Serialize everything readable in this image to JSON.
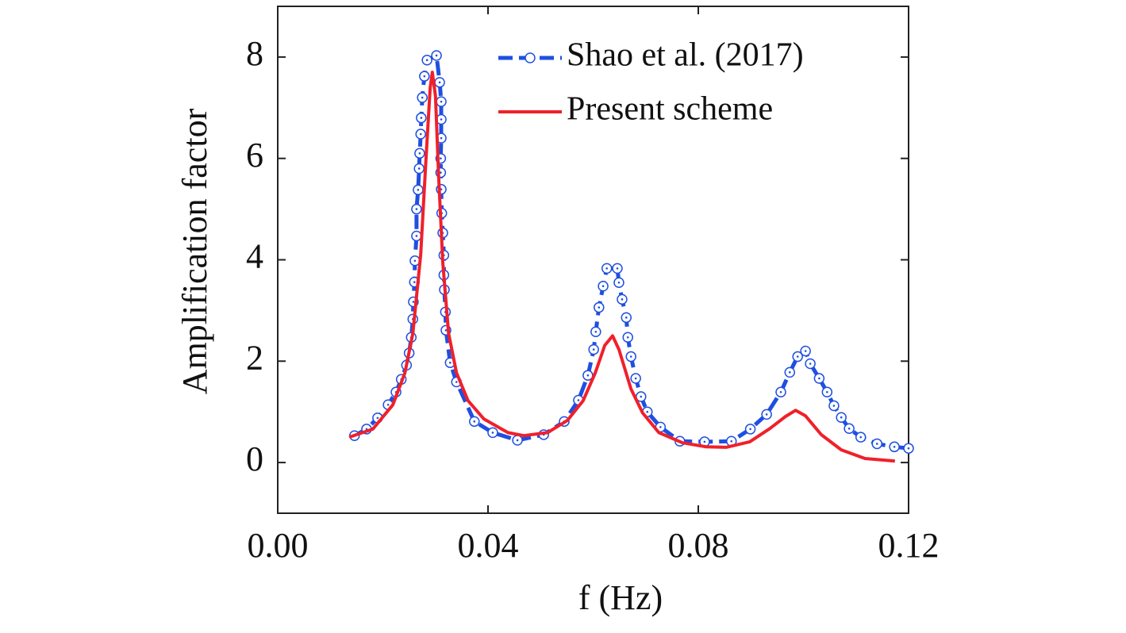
{
  "chart_data": {
    "type": "line",
    "xlabel": "f (Hz)",
    "ylabel": "Amplification factor",
    "xlim": [
      0,
      0.12
    ],
    "xticks": [
      {
        "value": 0,
        "label": "0.00"
      },
      0.04,
      0.08,
      {
        "value": 0.12,
        "label": "0.12"
      }
    ],
    "ylim": [
      -1,
      9
    ],
    "yticks": [
      0,
      2,
      4,
      6,
      8
    ],
    "legend": "upper right",
    "series": [
      {
        "name": "Shao et al. (2017)",
        "color": "#1f4fe0",
        "markers": true,
        "x": [
          0.0146,
          0.0169,
          0.019,
          0.021,
          0.0225,
          0.0235,
          0.0245,
          0.025,
          0.0254,
          0.0257,
          0.0258,
          0.026,
          0.0261,
          0.0264,
          0.0264,
          0.0267,
          0.0269,
          0.027,
          0.0272,
          0.0273,
          0.0275,
          0.0279,
          0.0284,
          0.0302,
          0.0308,
          0.0311,
          0.0311,
          0.0311,
          0.031,
          0.031,
          0.0311,
          0.0312,
          0.0314,
          0.0316,
          0.0316,
          0.0317,
          0.0319,
          0.032,
          0.0328,
          0.034,
          0.0374,
          0.0409,
          0.0456,
          0.0506,
          0.0545,
          0.0572,
          0.059,
          0.0601,
          0.0605,
          0.0611,
          0.0619,
          0.0626,
          0.0646,
          0.0649,
          0.0655,
          0.0663,
          0.0666,
          0.0672,
          0.0681,
          0.0691,
          0.0703,
          0.0728,
          0.0765,
          0.0812,
          0.0863,
          0.0899,
          0.093,
          0.0957,
          0.0974,
          0.0989,
          0.1004,
          0.1013,
          0.103,
          0.1045,
          0.1058,
          0.1072,
          0.1087,
          0.1109,
          0.114,
          0.1173,
          0.12
        ],
        "values": [
          0.53,
          0.66,
          0.88,
          1.14,
          1.39,
          1.64,
          1.92,
          2.16,
          2.47,
          2.83,
          3.17,
          3.56,
          3.98,
          4.47,
          5.0,
          5.38,
          5.8,
          6.1,
          6.48,
          6.8,
          7.2,
          7.62,
          7.94,
          8.03,
          7.5,
          7.12,
          6.77,
          6.4,
          6.0,
          5.72,
          5.39,
          4.92,
          4.53,
          4.09,
          3.7,
          3.41,
          2.97,
          2.61,
          1.97,
          1.59,
          0.81,
          0.59,
          0.44,
          0.55,
          0.81,
          1.23,
          1.72,
          2.23,
          2.58,
          3.06,
          3.48,
          3.83,
          3.83,
          3.55,
          3.22,
          2.86,
          2.47,
          2.09,
          1.66,
          1.3,
          1.0,
          0.7,
          0.42,
          0.41,
          0.42,
          0.66,
          0.95,
          1.39,
          1.78,
          2.09,
          2.2,
          1.95,
          1.66,
          1.39,
          1.12,
          0.89,
          0.67,
          0.5,
          0.37,
          0.31,
          0.28
        ]
      },
      {
        "name": "Present scheme",
        "color": "#f0202a",
        "markers": false,
        "x": [
          0.0136,
          0.0181,
          0.0219,
          0.0242,
          0.0257,
          0.0272,
          0.0282,
          0.029,
          0.0294,
          0.03,
          0.0306,
          0.0314,
          0.0325,
          0.034,
          0.0362,
          0.0392,
          0.0438,
          0.0468,
          0.0513,
          0.0551,
          0.0581,
          0.0604,
          0.0622,
          0.0637,
          0.0649,
          0.0672,
          0.0694,
          0.0725,
          0.077,
          0.0815,
          0.0853,
          0.0898,
          0.0936,
          0.0966,
          0.0985,
          0.1004,
          0.1034,
          0.1072,
          0.1117,
          0.1174
        ],
        "values": [
          0.5,
          0.66,
          1.14,
          1.77,
          2.55,
          4.11,
          5.98,
          7.39,
          7.7,
          7.23,
          5.67,
          3.95,
          2.55,
          1.77,
          1.22,
          0.86,
          0.59,
          0.53,
          0.59,
          0.83,
          1.22,
          1.77,
          2.31,
          2.5,
          2.23,
          1.45,
          0.98,
          0.59,
          0.39,
          0.31,
          0.3,
          0.41,
          0.67,
          0.91,
          1.03,
          0.92,
          0.55,
          0.25,
          0.08,
          0.03
        ]
      }
    ]
  }
}
